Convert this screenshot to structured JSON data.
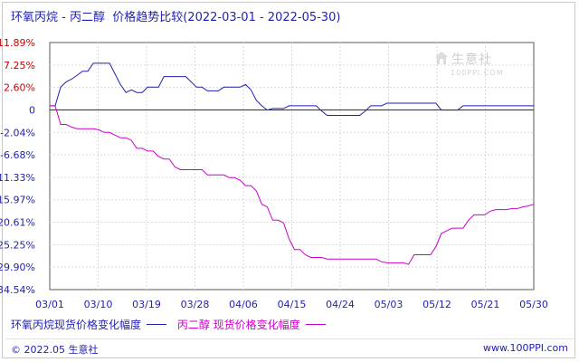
{
  "title": "环氧丙烷 - 丙二醇  价格趋势比较(2022-03-01 - 2022-05-30)",
  "watermark": {
    "brand": "生意社",
    "url": "100PPI.COM"
  },
  "footer": {
    "copyright": "© 2022.05 生意社",
    "site": "www.100PPI.com"
  },
  "colors": {
    "series_a": "#1f1fb0",
    "series_b": "#cc00cc",
    "grid": "#d9d9d9",
    "axis": "#5a5a5a",
    "tick_red": "#cc0000",
    "tick_blue": "#1f1fb0"
  },
  "chart_data": {
    "type": "line",
    "title": "环氧丙烷 - 丙二醇  价格趋势比较(2022-03-01 - 2022-05-30)",
    "x_ticks": [
      "03/01",
      "03/10",
      "03/19",
      "03/28",
      "04/06",
      "04/15",
      "04/24",
      "05/03",
      "05/12",
      "05/21",
      "05/30"
    ],
    "x_range": [
      "03/01",
      "05/30"
    ],
    "y_ticks": [
      "11.89%",
      "7.25%",
      "2.60%",
      "0",
      "-2.04%",
      "-6.68%",
      "-11.33%",
      "-15.97%",
      "-20.61%",
      "-25.25%",
      "-29.90%",
      "-34.54%"
    ],
    "ylim": [
      -34.54,
      11.89
    ],
    "grid": true,
    "legend_position": "bottom-left",
    "series": [
      {
        "name": "环氧丙烷现货价格变化幅度",
        "color": "#1f1fb0",
        "x": [
          0,
          1,
          2,
          3,
          4,
          5,
          6,
          7,
          8,
          9,
          10,
          11,
          12,
          13,
          14,
          15,
          16,
          17,
          18,
          19,
          20,
          21,
          22,
          23,
          24,
          25,
          26,
          27,
          28,
          29,
          30,
          31,
          32,
          33,
          34,
          35,
          36,
          37,
          38,
          39,
          40,
          41,
          42,
          43,
          44,
          45,
          46,
          47,
          48,
          49,
          50,
          51,
          52,
          53,
          54,
          55,
          56,
          57,
          58,
          59,
          60,
          61,
          62,
          63,
          64,
          65,
          66,
          67,
          68,
          69,
          70,
          71,
          72,
          73,
          74,
          75,
          76,
          77,
          78,
          79,
          80,
          81,
          82,
          83,
          84,
          85,
          86,
          87,
          88,
          89
        ],
        "values": [
          0,
          0,
          3.5,
          4.5,
          5.0,
          5.7,
          6.5,
          6.5,
          8.0,
          8.0,
          8.0,
          8.0,
          6.0,
          4.0,
          2.5,
          3.0,
          2.5,
          2.5,
          3.5,
          3.5,
          3.5,
          5.5,
          5.5,
          5.5,
          5.5,
          5.5,
          4.5,
          3.5,
          3.5,
          2.8,
          2.8,
          2.8,
          3.5,
          3.5,
          3.5,
          3.5,
          4.0,
          3.0,
          1.0,
          0,
          -0.8,
          -0.5,
          -0.5,
          -0.5,
          0,
          0,
          0,
          0,
          0,
          0,
          -1.0,
          -1.8,
          -1.8,
          -1.8,
          -1.8,
          -1.8,
          -1.8,
          -1.8,
          -1.0,
          0,
          0,
          0,
          0.5,
          0.5,
          0.5,
          0.5,
          0.5,
          0.5,
          0.5,
          0.5,
          0.5,
          0.5,
          -0.8,
          -0.8,
          -0.8,
          -0.8,
          0,
          0,
          0,
          0,
          0,
          0,
          0,
          0,
          0,
          0,
          0,
          0,
          0,
          0
        ]
      },
      {
        "name": "丙二醇 现货价格变化幅度",
        "color": "#cc00cc",
        "x": [
          0,
          1,
          2,
          3,
          4,
          5,
          6,
          7,
          8,
          9,
          10,
          11,
          12,
          13,
          14,
          15,
          16,
          17,
          18,
          19,
          20,
          21,
          22,
          23,
          24,
          25,
          26,
          27,
          28,
          29,
          30,
          31,
          32,
          33,
          34,
          35,
          36,
          37,
          38,
          39,
          40,
          41,
          42,
          43,
          44,
          45,
          46,
          47,
          48,
          49,
          50,
          51,
          52,
          53,
          54,
          55,
          56,
          57,
          58,
          59,
          60,
          61,
          62,
          63,
          64,
          65,
          66,
          67,
          68,
          69,
          70,
          71,
          72,
          73,
          74,
          75,
          76,
          77,
          78,
          79,
          80,
          81,
          82,
          83,
          84,
          85,
          86,
          87,
          88,
          89
        ],
        "values": [
          0,
          0,
          -3.5,
          -3.5,
          -4.0,
          -4.3,
          -4.3,
          -4.3,
          -4.3,
          -4.5,
          -5.0,
          -5.0,
          -5.5,
          -6.0,
          -6.0,
          -6.5,
          -8.0,
          -8.0,
          -8.5,
          -8.5,
          -9.5,
          -10.0,
          -10.0,
          -11.5,
          -12.0,
          -12.0,
          -12.0,
          -12.0,
          -12.0,
          -13.0,
          -13.0,
          -13.0,
          -13.0,
          -13.5,
          -13.5,
          -14.0,
          -15.0,
          -15.0,
          -16.0,
          -18.5,
          -19.0,
          -21.5,
          -21.5,
          -22.0,
          -25.0,
          -27.0,
          -27.0,
          -28.0,
          -28.5,
          -28.5,
          -28.5,
          -28.8,
          -28.8,
          -28.8,
          -28.8,
          -28.8,
          -28.8,
          -28.8,
          -28.8,
          -28.8,
          -28.8,
          -29.3,
          -29.5,
          -29.5,
          -29.5,
          -29.5,
          -29.8,
          -28.0,
          -28.0,
          -28.0,
          -28.0,
          -26.5,
          -24.0,
          -23.5,
          -23.0,
          -23.0,
          -23.0,
          -21.5,
          -20.5,
          -20.5,
          -20.5,
          -19.8,
          -19.5,
          -19.5,
          -19.5,
          -19.3,
          -19.3,
          -19.0,
          -18.8,
          -18.5
        ]
      }
    ]
  }
}
